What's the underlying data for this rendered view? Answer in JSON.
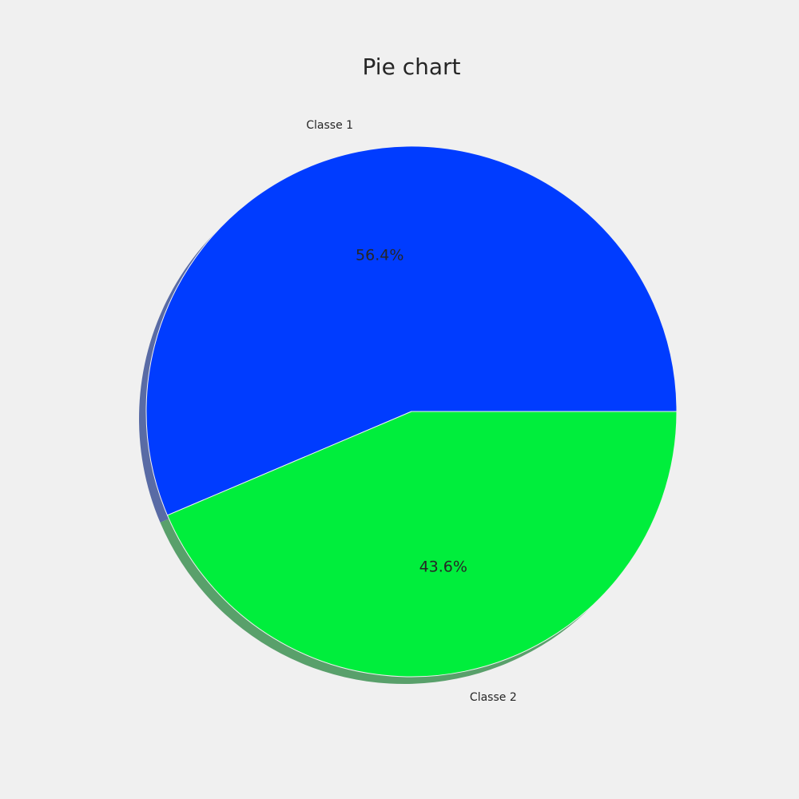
{
  "chart_data": {
    "type": "pie",
    "title": "Pie chart",
    "start_angle_deg": 0,
    "direction": "counterclockwise",
    "shadow": true,
    "legend": "none",
    "slices": [
      {
        "label": "Classe 1",
        "value": 56.4,
        "display": "56.4%",
        "color": "#003cff"
      },
      {
        "label": "Classe 2",
        "value": 43.6,
        "display": "43.6%",
        "color": "#00ee3c"
      }
    ]
  }
}
